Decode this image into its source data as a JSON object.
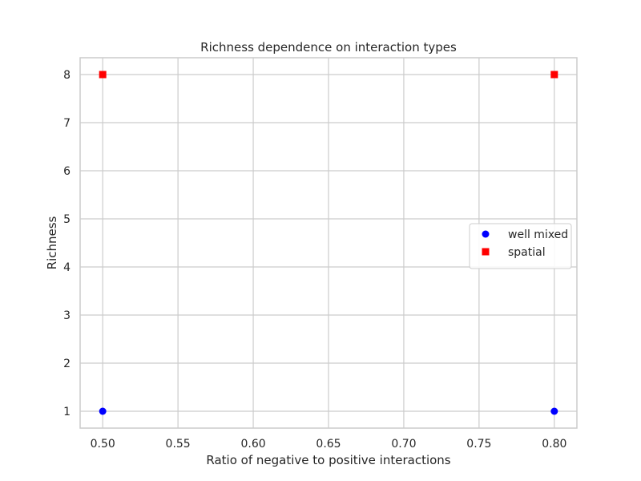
{
  "chart_data": {
    "type": "scatter",
    "title": "Richness dependence on interaction types",
    "xlabel": "Ratio of negative to positive interactions",
    "ylabel": "Richness",
    "xlim": [
      0.485,
      0.815
    ],
    "ylim": [
      0.65,
      8.35
    ],
    "xticks": [
      0.5,
      0.55,
      0.6,
      0.65,
      0.7,
      0.75,
      0.8
    ],
    "xtick_labels": [
      "0.50",
      "0.55",
      "0.60",
      "0.65",
      "0.70",
      "0.75",
      "0.80"
    ],
    "yticks": [
      1,
      2,
      3,
      4,
      5,
      6,
      7,
      8
    ],
    "ytick_labels": [
      "1",
      "2",
      "3",
      "4",
      "5",
      "6",
      "7",
      "8"
    ],
    "grid": true,
    "legend_position": "center-right",
    "series": [
      {
        "name": "well mixed",
        "marker": "circle",
        "color": "#0000ff",
        "x": [
          0.5,
          0.8
        ],
        "y": [
          1,
          1
        ]
      },
      {
        "name": "spatial",
        "marker": "square",
        "color": "#ff0000",
        "x": [
          0.5,
          0.8
        ],
        "y": [
          8,
          8
        ]
      }
    ]
  }
}
